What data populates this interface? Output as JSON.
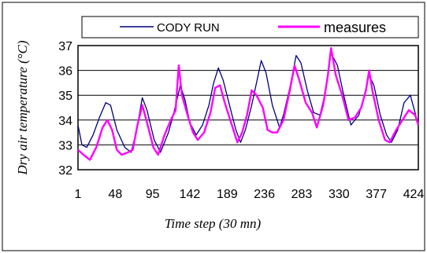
{
  "chart_data": {
    "type": "line",
    "xlabel": "Time step (30 mn)",
    "ylabel": "Dry air temperature (°C)",
    "xlim": [
      1,
      430
    ],
    "ylim": [
      32,
      37
    ],
    "x_ticks": [
      1,
      48,
      95,
      142,
      189,
      236,
      283,
      330,
      377,
      424
    ],
    "y_ticks": [
      32,
      33,
      34,
      35,
      36,
      37
    ],
    "grid": "horizontal",
    "legend": "top",
    "series": [
      {
        "name": "CODY RUN",
        "color": "#000080",
        "points": [
          [
            1,
            33.8
          ],
          [
            6,
            33.0
          ],
          [
            12,
            32.9
          ],
          [
            20,
            33.4
          ],
          [
            28,
            34.1
          ],
          [
            36,
            34.7
          ],
          [
            42,
            34.6
          ],
          [
            50,
            33.6
          ],
          [
            60,
            32.9
          ],
          [
            68,
            32.7
          ],
          [
            75,
            33.6
          ],
          [
            82,
            34.9
          ],
          [
            88,
            34.4
          ],
          [
            97,
            33.2
          ],
          [
            105,
            32.7
          ],
          [
            115,
            33.5
          ],
          [
            122,
            34.3
          ],
          [
            130,
            35.4
          ],
          [
            136,
            34.8
          ],
          [
            142,
            33.9
          ],
          [
            150,
            33.4
          ],
          [
            158,
            33.8
          ],
          [
            166,
            34.6
          ],
          [
            172,
            35.5
          ],
          [
            178,
            36.1
          ],
          [
            184,
            35.6
          ],
          [
            192,
            34.6
          ],
          [
            200,
            33.6
          ],
          [
            206,
            33.1
          ],
          [
            212,
            33.6
          ],
          [
            220,
            34.6
          ],
          [
            226,
            35.5
          ],
          [
            232,
            36.4
          ],
          [
            238,
            35.9
          ],
          [
            246,
            34.6
          ],
          [
            255,
            33.7
          ],
          [
            260,
            34.2
          ],
          [
            268,
            35.3
          ],
          [
            276,
            36.6
          ],
          [
            282,
            36.3
          ],
          [
            290,
            35.2
          ],
          [
            298,
            34.3
          ],
          [
            306,
            34.2
          ],
          [
            312,
            35.0
          ],
          [
            320,
            36.7
          ],
          [
            328,
            36.2
          ],
          [
            336,
            35.0
          ],
          [
            345,
            33.8
          ],
          [
            355,
            34.2
          ],
          [
            362,
            35.0
          ],
          [
            368,
            35.8
          ],
          [
            374,
            35.4
          ],
          [
            382,
            34.2
          ],
          [
            390,
            33.4
          ],
          [
            396,
            33.1
          ],
          [
            404,
            33.6
          ],
          [
            412,
            34.7
          ],
          [
            420,
            35.0
          ],
          [
            430,
            33.8
          ]
        ]
      },
      {
        "name": "measures",
        "color": "#FF00FF",
        "points": [
          [
            1,
            32.8
          ],
          [
            8,
            32.6
          ],
          [
            16,
            32.4
          ],
          [
            24,
            32.9
          ],
          [
            32,
            33.7
          ],
          [
            38,
            34.0
          ],
          [
            44,
            33.6
          ],
          [
            50,
            32.8
          ],
          [
            56,
            32.6
          ],
          [
            64,
            32.7
          ],
          [
            70,
            32.8
          ],
          [
            76,
            33.8
          ],
          [
            82,
            34.6
          ],
          [
            88,
            33.9
          ],
          [
            96,
            32.9
          ],
          [
            102,
            32.6
          ],
          [
            110,
            33.4
          ],
          [
            118,
            34.0
          ],
          [
            124,
            34.4
          ],
          [
            128,
            36.2
          ],
          [
            132,
            35.0
          ],
          [
            140,
            34.1
          ],
          [
            146,
            33.5
          ],
          [
            152,
            33.2
          ],
          [
            160,
            33.5
          ],
          [
            168,
            34.3
          ],
          [
            174,
            35.3
          ],
          [
            180,
            35.4
          ],
          [
            186,
            34.7
          ],
          [
            194,
            33.9
          ],
          [
            202,
            33.1
          ],
          [
            208,
            33.5
          ],
          [
            214,
            34.2
          ],
          [
            220,
            35.2
          ],
          [
            226,
            35.0
          ],
          [
            234,
            34.5
          ],
          [
            240,
            33.6
          ],
          [
            246,
            33.5
          ],
          [
            252,
            33.5
          ],
          [
            260,
            34.0
          ],
          [
            268,
            35.2
          ],
          [
            274,
            36.2
          ],
          [
            280,
            35.6
          ],
          [
            288,
            34.7
          ],
          [
            296,
            34.3
          ],
          [
            302,
            33.7
          ],
          [
            310,
            34.6
          ],
          [
            316,
            35.8
          ],
          [
            320,
            36.9
          ],
          [
            326,
            35.8
          ],
          [
            334,
            35.0
          ],
          [
            342,
            34.0
          ],
          [
            350,
            34.1
          ],
          [
            358,
            34.5
          ],
          [
            364,
            35.2
          ],
          [
            368,
            36.0
          ],
          [
            372,
            35.2
          ],
          [
            380,
            34.0
          ],
          [
            388,
            33.2
          ],
          [
            394,
            33.1
          ],
          [
            402,
            33.6
          ],
          [
            410,
            34.0
          ],
          [
            418,
            34.4
          ],
          [
            426,
            34.2
          ],
          [
            430,
            33.8
          ]
        ]
      }
    ]
  }
}
